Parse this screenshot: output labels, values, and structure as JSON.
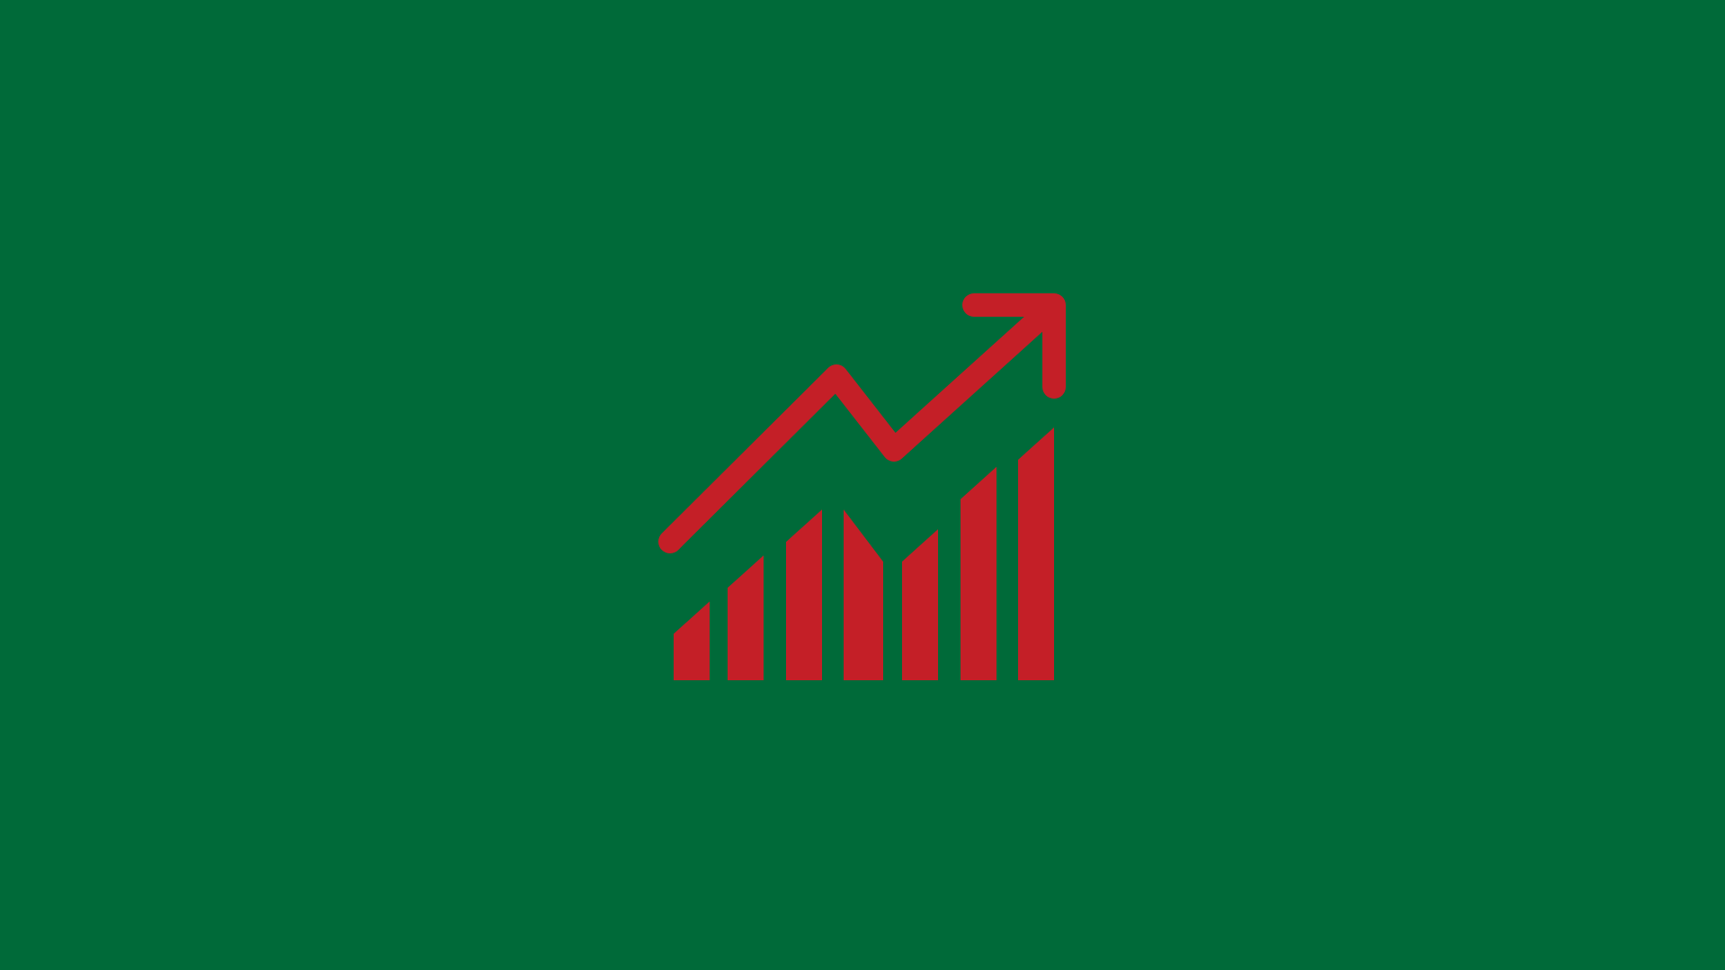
{
  "colors": {
    "background": "#006a39",
    "icon": "#c41f27"
  },
  "icon": {
    "name": "growth-chart-icon",
    "bar_levels": [
      0.24,
      0.38,
      0.52,
      0.52,
      0.46,
      0.65,
      0.77
    ]
  }
}
